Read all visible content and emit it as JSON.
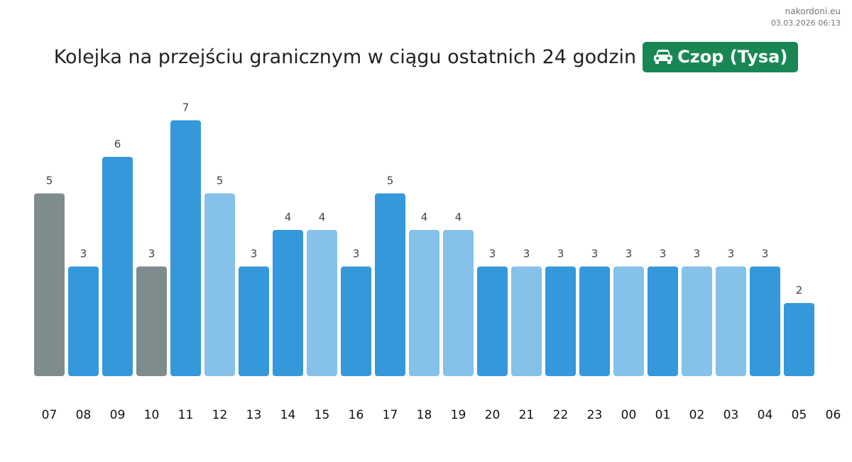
{
  "source": "nakordoni.eu",
  "timestamp": "03.03.2026 06:13",
  "title": "Kolejka na przejściu granicznym w ciągu ostatnich 24 godzin",
  "crossing": {
    "label": "Czop (Tysa)",
    "icon": "car-icon",
    "color": "#198754"
  },
  "colors": {
    "gray": "#7f8c8d",
    "dark": "#3498db",
    "light": "#85c1e9"
  },
  "chart_data": {
    "type": "bar",
    "categories": [
      "07",
      "08",
      "09",
      "10",
      "11",
      "12",
      "13",
      "14",
      "15",
      "16",
      "17",
      "18",
      "19",
      "20",
      "21",
      "22",
      "23",
      "00",
      "01",
      "02",
      "03",
      "04",
      "05"
    ],
    "extra_tick": "06",
    "values": [
      5,
      3,
      6,
      3,
      7,
      5,
      3,
      4,
      4,
      3,
      5,
      4,
      4,
      3,
      3,
      3,
      3,
      3,
      3,
      3,
      3,
      3,
      2
    ],
    "bar_colors": [
      "gray",
      "dark",
      "dark",
      "gray",
      "dark",
      "light",
      "dark",
      "dark",
      "light",
      "dark",
      "dark",
      "light",
      "light",
      "dark",
      "light",
      "dark",
      "dark",
      "light",
      "dark",
      "light",
      "light",
      "dark",
      "dark"
    ],
    "ylim": [
      0,
      7
    ],
    "data_labels": true,
    "grid": false,
    "title": "",
    "xlabel": "",
    "ylabel": ""
  }
}
